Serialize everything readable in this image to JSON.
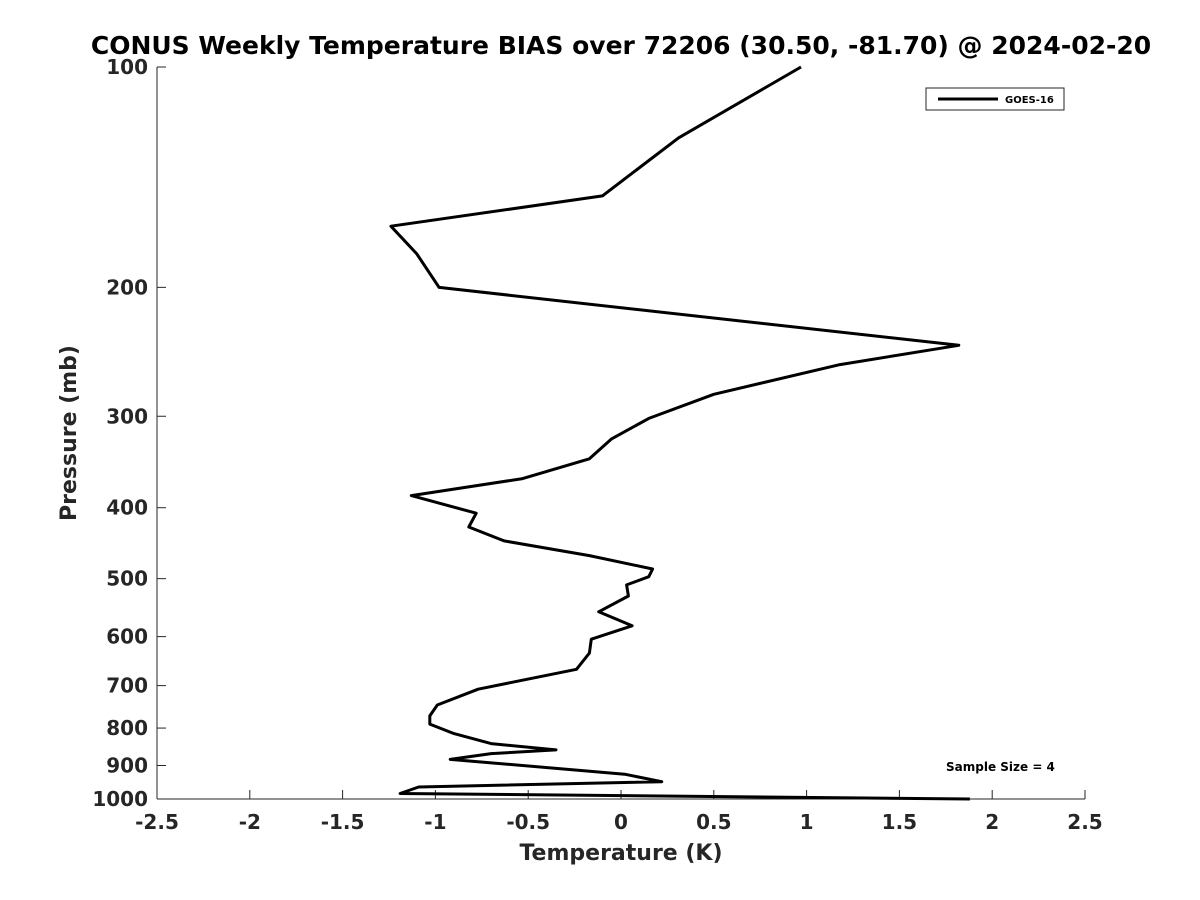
{
  "chart_data": {
    "type": "line",
    "title": "CONUS Weekly Temperature BIAS over 72206 (30.50, -81.70) @ 2024-02-20",
    "xlabel": "Temperature (K)",
    "ylabel": "Pressure (mb)",
    "xlim": [
      -2.5,
      2.5
    ],
    "ylim": [
      100,
      1000
    ],
    "y_scale": "log",
    "y_reversed": true,
    "grid": false,
    "legend_position": "top-right",
    "x_ticks": [
      "-2.5",
      "-2",
      "-1.5",
      "-1",
      "-0.5",
      "0",
      "0.5",
      "1",
      "1.5",
      "2",
      "2.5"
    ],
    "y_ticks": [
      "100",
      "200",
      "300",
      "400",
      "500",
      "600",
      "700",
      "800",
      "900",
      "1000"
    ],
    "line_color": "#000000",
    "series": [
      {
        "name": "GOES-16",
        "x": [
          0.97,
          0.31,
          -0.1,
          -1.24,
          -1.1,
          -0.98,
          1.82,
          1.18,
          0.5,
          0.15,
          -0.05,
          -0.17,
          -0.53,
          -1.13,
          -0.78,
          -0.82,
          -0.63,
          -0.17,
          0.17,
          0.15,
          0.03,
          0.04,
          -0.12,
          0.06,
          -0.16,
          -0.17,
          -0.24,
          -0.77,
          -0.99,
          -1.03,
          -1.03,
          -0.9,
          -0.7,
          -0.35,
          -0.7,
          -0.92,
          0.02,
          0.22,
          -1.09,
          -1.19,
          1.88
        ],
        "y": [
          100,
          125,
          150,
          165,
          180,
          200,
          240,
          255,
          280,
          302,
          322,
          343,
          365,
          385,
          407,
          425,
          444,
          465,
          485,
          497,
          510,
          528,
          555,
          580,
          605,
          632,
          665,
          708,
          744,
          770,
          790,
          814,
          840,
          857,
          867,
          883,
          925,
          947,
          963,
          983,
          1000
        ]
      }
    ],
    "annotation": "Sample Size = 4"
  }
}
